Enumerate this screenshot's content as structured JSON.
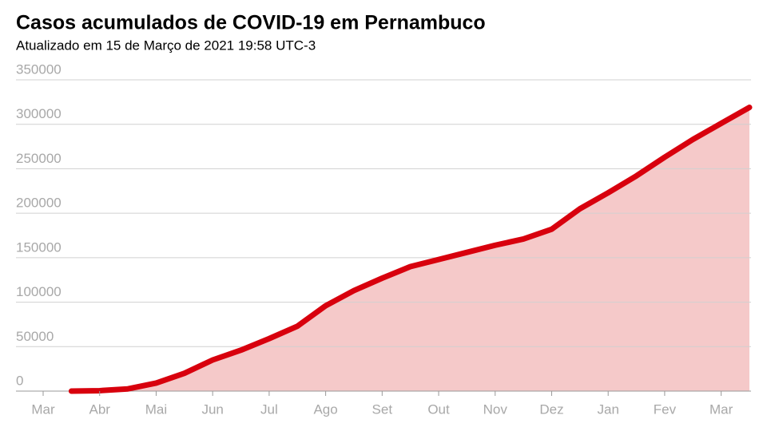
{
  "chart_data": {
    "type": "area-line",
    "title": "Casos acumulados de COVID-19 em Pernambuco",
    "subtitle": "Atualizado em 15 de Março de 2021 19:58 UTC-3",
    "categories": [
      "Mar",
      null,
      "Abr",
      null,
      "Mai",
      null,
      "Jun",
      null,
      "Jul",
      null,
      "Ago",
      null,
      "Set",
      null,
      "Out",
      null,
      "Nov",
      null,
      "Dez",
      null,
      "Jan",
      null,
      "Fev",
      null,
      "Mar",
      null
    ],
    "values": [
      null,
      0,
      500,
      2500,
      9000,
      20000,
      35000,
      46000,
      59000,
      73000,
      96000,
      113000,
      127000,
      140000,
      148000,
      156000,
      164000,
      171000,
      182000,
      205000,
      223000,
      242000,
      263000,
      283000,
      301000,
      319000
    ],
    "color": "#d8000d",
    "fill_color": "#f5c9c9",
    "ylim": [
      0,
      350000
    ],
    "yticks": [
      0,
      50000,
      100000,
      150000,
      200000,
      250000,
      300000,
      350000
    ],
    "grid": true
  }
}
